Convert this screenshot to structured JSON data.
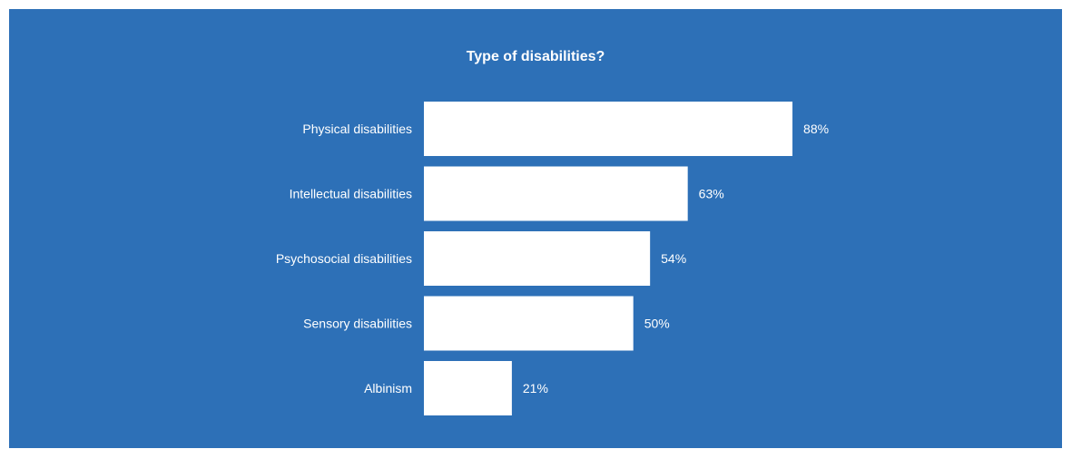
{
  "colors": {
    "background": "#2d70b7",
    "bar": "#ffffff",
    "text": "#ffffff",
    "page": "#ffffff"
  },
  "chart_data": {
    "type": "bar",
    "orientation": "horizontal",
    "title": "Type of disabilities?",
    "categories": [
      "Physical disabilities",
      "Intellectual disabilities",
      "Psychosocial disabilities",
      "Sensory disabilities",
      "Albinism"
    ],
    "values": [
      88,
      63,
      54,
      50,
      21
    ],
    "value_labels": [
      "88%",
      "63%",
      "54%",
      "50%",
      "21%"
    ],
    "unit": "%",
    "xlim": [
      0,
      100
    ],
    "grid": false,
    "legend": "none"
  }
}
